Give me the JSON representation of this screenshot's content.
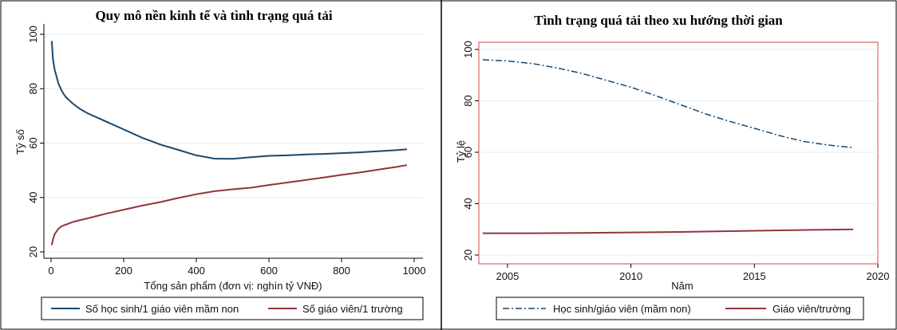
{
  "chart_data": [
    {
      "type": "line",
      "title": "Quy mô nền kinh tế và tình trạng quá tải",
      "xlabel": "Tổng sản phẩm (đơn vị: nghìn tỷ VNĐ)",
      "ylabel": "Tỷ số",
      "xlim": [
        0,
        1000
      ],
      "ylim": [
        20,
        100
      ],
      "xticks": [
        "0",
        "200",
        "400",
        "600",
        "800",
        "1000"
      ],
      "yticks": [
        "20",
        "40",
        "60",
        "80",
        "100"
      ],
      "grid": true,
      "legend_position": "bottom",
      "series": [
        {
          "name": "Số học sinh/1 giáo viên mầm non",
          "color": "#1a476f",
          "style": "solid",
          "x": [
            2,
            5,
            10,
            20,
            30,
            40,
            50,
            60,
            80,
            100,
            150,
            200,
            250,
            300,
            350,
            400,
            450,
            500,
            550,
            600,
            650,
            700,
            750,
            800,
            850,
            900,
            950,
            980
          ],
          "y": [
            97.5,
            91,
            87,
            82,
            79,
            77,
            75.7,
            74.5,
            72.5,
            71,
            68,
            65,
            62,
            59.5,
            57.5,
            55.5,
            54.3,
            54.2,
            54.8,
            55.3,
            55.5,
            55.8,
            56,
            56.3,
            56.6,
            57,
            57.4,
            57.7
          ]
        },
        {
          "name": "Số giáo viên/1 trường",
          "color": "#90353b",
          "style": "solid",
          "x": [
            2,
            5,
            10,
            20,
            30,
            40,
            50,
            60,
            80,
            100,
            150,
            200,
            250,
            300,
            350,
            400,
            450,
            500,
            550,
            600,
            650,
            700,
            750,
            800,
            850,
            900,
            950,
            980
          ],
          "y": [
            22.5,
            24.5,
            26.5,
            28.5,
            29.5,
            30,
            30.5,
            31,
            31.7,
            32.3,
            34,
            35.5,
            37,
            38.3,
            39.8,
            41.2,
            42.3,
            43,
            43.6,
            44.6,
            45.5,
            46.4,
            47.3,
            48.3,
            49.2,
            50.2,
            51.2,
            51.9
          ]
        }
      ]
    },
    {
      "type": "line",
      "title": "Tình trạng quá tải theo xu hướng thời gian",
      "xlabel": "Năm",
      "ylabel": "Tỷ lệ",
      "xlim": [
        2004,
        2020
      ],
      "ylim": [
        20,
        100
      ],
      "xticks": [
        "2005",
        "2010",
        "2015",
        "2020"
      ],
      "yticks": [
        "20",
        "40",
        "60",
        "80",
        "100"
      ],
      "grid": true,
      "legend_position": "bottom",
      "series": [
        {
          "name": "Học sinh/giáo viên (mầm non)",
          "color": "#1a476f",
          "style": "dashdot",
          "x": [
            2004,
            2005,
            2006,
            2007,
            2008,
            2009,
            2010,
            2011,
            2012,
            2013,
            2014,
            2015,
            2016,
            2017,
            2018,
            2019
          ],
          "y": [
            96,
            95.5,
            94.5,
            92.8,
            90.7,
            88,
            85.3,
            82,
            78.5,
            75,
            72,
            69.3,
            66.5,
            64.2,
            62.8,
            61.8
          ]
        },
        {
          "name": "Giáo viên/trường",
          "color": "#90353b",
          "style": "solid",
          "x": [
            2004,
            2006,
            2008,
            2010,
            2012,
            2014,
            2016,
            2018,
            2019
          ],
          "y": [
            28.5,
            28.5,
            28.6,
            28.8,
            29,
            29.3,
            29.6,
            29.9,
            30
          ]
        }
      ]
    }
  ]
}
